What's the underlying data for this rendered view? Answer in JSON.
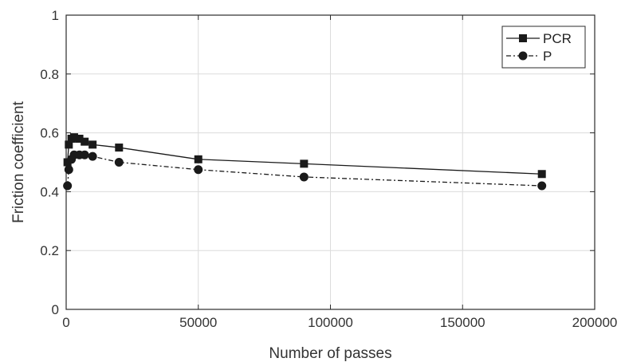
{
  "chart_data": {
    "type": "line",
    "title": "",
    "xlabel": "Number of passes",
    "ylabel": "Friction coefficient",
    "xlim": [
      0,
      200000
    ],
    "ylim": [
      0,
      1
    ],
    "xticks": [
      0,
      50000,
      100000,
      150000,
      200000
    ],
    "xtick_labels": [
      "0",
      "50000",
      "100000",
      "150000",
      "200000"
    ],
    "yticks": [
      0,
      0.2,
      0.4,
      0.6,
      0.8,
      1
    ],
    "ytick_labels": [
      "0",
      "0.2",
      "0.4",
      "0.6",
      "0.8",
      "1"
    ],
    "grid": true,
    "legend_position": "top-right",
    "series": [
      {
        "name": "PCR",
        "marker": "square",
        "line_style": "solid",
        "color": "#1a1a1a",
        "x": [
          500,
          1000,
          2000,
          3000,
          5000,
          7000,
          10000,
          20000,
          50000,
          90000,
          180000
        ],
        "y": [
          0.5,
          0.56,
          0.58,
          0.585,
          0.58,
          0.57,
          0.56,
          0.55,
          0.51,
          0.495,
          0.46
        ]
      },
      {
        "name": "P",
        "marker": "circle",
        "line_style": "dash-dot",
        "color": "#1a1a1a",
        "x": [
          500,
          1000,
          2000,
          3000,
          5000,
          7000,
          10000,
          20000,
          50000,
          90000,
          180000
        ],
        "y": [
          0.42,
          0.475,
          0.51,
          0.525,
          0.525,
          0.525,
          0.52,
          0.5,
          0.475,
          0.45,
          0.42
        ]
      }
    ]
  }
}
